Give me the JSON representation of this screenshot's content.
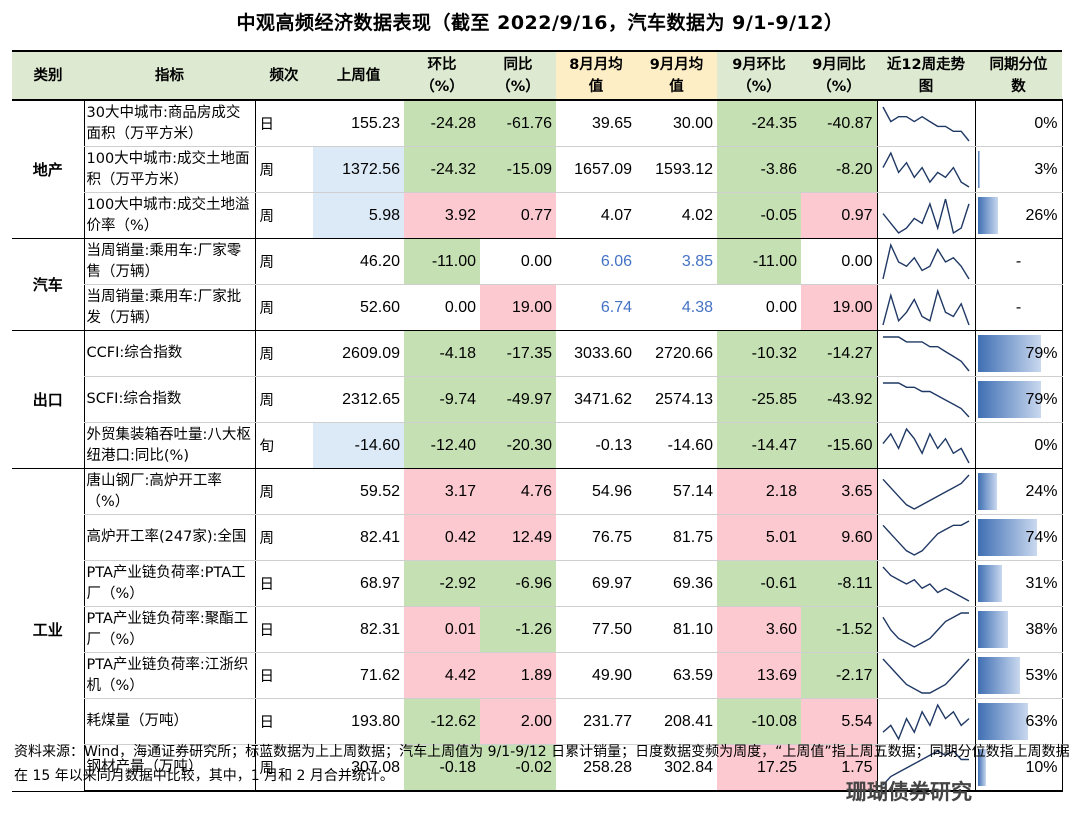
{
  "title": "中观高频经济数据表现（截至 2022/9/16，汽车数据为 9/1-9/12）",
  "headers": {
    "category": "类别",
    "indicator": "指标",
    "frequency": "频次",
    "last_week": "上周值",
    "wow": "环比\n（%）",
    "yoy": "同比\n（%）",
    "aug_avg": "8月月均\n值",
    "sep_avg": "9月月均\n值",
    "sep_mom": "9月环比\n（%）",
    "sep_yoy": "9月同比\n（%）",
    "trend": "近12周走势\n图",
    "percentile": "同期分位\n数"
  },
  "groups": [
    {
      "name": "地产",
      "rows": [
        {
          "indicator": "30大中城市:商品房成交面积（万平方米）",
          "freq": "日",
          "last": "155.23",
          "wow": "-24.28",
          "yoy": "-61.76",
          "aug": "39.65",
          "sep": "30.00",
          "smom": "-24.35",
          "syoy": "-40.87",
          "pct": "0%",
          "pct_value": 0,
          "spark": [
            8,
            5,
            6,
            6,
            5,
            6,
            5,
            4,
            4,
            3,
            3,
            1
          ],
          "c": [
            "",
            "green",
            "green",
            "",
            "",
            "green",
            "green"
          ]
        },
        {
          "indicator": "100大中城市:成交土地面积（万平方米）",
          "freq": "周",
          "last": "1372.56",
          "wow": "-24.32",
          "yoy": "-15.09",
          "aug": "1657.09",
          "sep": "1593.12",
          "smom": "-3.86",
          "syoy": "-8.20",
          "pct": "3%",
          "pct_value": 3,
          "spark": [
            5,
            8,
            4,
            6,
            3,
            5,
            2,
            4,
            3,
            5,
            2,
            1
          ],
          "c": [
            "blue",
            "green",
            "green",
            "",
            "",
            "green",
            "green"
          ]
        },
        {
          "indicator": "100大中城市:成交土地溢价率（%）",
          "freq": "周",
          "last": "5.98",
          "wow": "3.92",
          "yoy": "0.77",
          "aug": "4.07",
          "sep": "4.02",
          "smom": "-0.05",
          "syoy": "0.97",
          "pct": "26%",
          "pct_value": 26,
          "spark": [
            6,
            4,
            2,
            3,
            5,
            4,
            8,
            3,
            9,
            2,
            3,
            8
          ],
          "c": [
            "blue",
            "pink",
            "pink",
            "",
            "",
            "green",
            "pink"
          ]
        }
      ]
    },
    {
      "name": "汽车",
      "rows": [
        {
          "indicator": "当周销量:乘用车:厂家零售（万辆）",
          "freq": "周",
          "last": "46.20",
          "wow": "-11.00",
          "yoy": "0.00",
          "aug": "6.06",
          "sep": "3.85",
          "smom": "-11.00",
          "syoy": "0.00",
          "pct": "-",
          "pct_value": null,
          "spark": [
            1,
            9,
            5,
            4,
            6,
            3,
            4,
            8,
            5,
            6,
            4,
            1
          ],
          "c": [
            "",
            "green",
            "",
            "bluetext",
            "bluetext",
            "green",
            ""
          ]
        },
        {
          "indicator": "当周销量:乘用车:厂家批发（万辆）",
          "freq": "周",
          "last": "52.60",
          "wow": "0.00",
          "yoy": "19.00",
          "aug": "6.74",
          "sep": "4.38",
          "smom": "0.00",
          "syoy": "19.00",
          "pct": "-",
          "pct_value": null,
          "spark": [
            1,
            8,
            2,
            4,
            7,
            3,
            2,
            9,
            4,
            3,
            6,
            1
          ],
          "c": [
            "",
            "",
            "pink",
            "bluetext",
            "bluetext",
            "",
            "pink"
          ]
        }
      ]
    },
    {
      "name": "出口",
      "rows": [
        {
          "indicator": "CCFI:综合指数",
          "freq": "周",
          "last": "2609.09",
          "wow": "-4.18",
          "yoy": "-17.35",
          "aug": "3033.60",
          "sep": "2720.66",
          "smom": "-10.32",
          "syoy": "-14.27",
          "pct": "79%",
          "pct_value": 79,
          "spark": [
            9,
            9,
            9,
            8,
            8,
            8,
            7,
            7,
            6,
            5,
            4,
            2
          ],
          "c": [
            "",
            "green",
            "green",
            "",
            "",
            "green",
            "green"
          ]
        },
        {
          "indicator": "SCFI:综合指数",
          "freq": "周",
          "last": "2312.65",
          "wow": "-9.74",
          "yoy": "-49.97",
          "aug": "3471.62",
          "sep": "2574.13",
          "smom": "-25.85",
          "syoy": "-43.92",
          "pct": "79%",
          "pct_value": 79,
          "spark": [
            9,
            9,
            9,
            8,
            8,
            7,
            7,
            6,
            5,
            4,
            3,
            1
          ],
          "c": [
            "",
            "green",
            "green",
            "",
            "",
            "green",
            "green"
          ]
        },
        {
          "indicator": "外贸集装箱吞吐量:八大枢纽港口:同比(%)",
          "freq": "旬",
          "last": "-14.60",
          "wow": "-12.40",
          "yoy": "-20.30",
          "aug": "-0.13",
          "sep": "-14.60",
          "smom": "-14.47",
          "syoy": "-15.60",
          "pct": "0%",
          "pct_value": 0,
          "spark": [
            5,
            7,
            4,
            8,
            6,
            3,
            7,
            4,
            6,
            3,
            4,
            1
          ],
          "c": [
            "blue",
            "green",
            "green",
            "",
            "",
            "green",
            "green"
          ]
        }
      ]
    },
    {
      "name": "工业",
      "rows": [
        {
          "indicator": "唐山钢厂:高炉开工率（%）",
          "freq": "周",
          "last": "59.52",
          "wow": "3.17",
          "yoy": "4.76",
          "aug": "54.96",
          "sep": "57.14",
          "smom": "2.18",
          "syoy": "3.65",
          "pct": "24%",
          "pct_value": 24,
          "spark": [
            8,
            6,
            4,
            2,
            1,
            2,
            3,
            4,
            5,
            6,
            7,
            9
          ],
          "c": [
            "",
            "pink",
            "pink",
            "",
            "",
            "pink",
            "pink"
          ]
        },
        {
          "indicator": "高炉开工率(247家):全国",
          "freq": "周",
          "last": "82.41",
          "wow": "0.42",
          "yoy": "12.49",
          "aug": "76.75",
          "sep": "81.75",
          "smom": "5.01",
          "syoy": "9.60",
          "pct": "74%",
          "pct_value": 74,
          "spark": [
            8,
            6,
            4,
            2,
            1,
            2,
            4,
            6,
            7,
            8,
            8,
            9
          ],
          "c": [
            "",
            "pink",
            "pink",
            "",
            "",
            "pink",
            "pink"
          ]
        },
        {
          "indicator": "PTA产业链负荷率:PTA工厂（%）",
          "freq": "日",
          "last": "68.97",
          "wow": "-2.92",
          "yoy": "-6.96",
          "aug": "69.97",
          "sep": "69.36",
          "smom": "-0.61",
          "syoy": "-8.11",
          "pct": "31%",
          "pct_value": 31,
          "spark": [
            9,
            7,
            6,
            5,
            6,
            4,
            5,
            3,
            4,
            3,
            2,
            1
          ],
          "c": [
            "",
            "green",
            "green",
            "",
            "",
            "green",
            "green"
          ]
        },
        {
          "indicator": "PTA产业链负荷率:聚酯工厂（%）",
          "freq": "日",
          "last": "82.31",
          "wow": "0.01",
          "yoy": "-1.26",
          "aug": "77.50",
          "sep": "81.10",
          "smom": "3.60",
          "syoy": "-1.52",
          "pct": "38%",
          "pct_value": 38,
          "spark": [
            8,
            5,
            3,
            2,
            1,
            2,
            3,
            5,
            7,
            8,
            9,
            9
          ],
          "c": [
            "",
            "pink",
            "green",
            "",
            "",
            "pink",
            "green"
          ]
        },
        {
          "indicator": "PTA产业链负荷率:江浙织机（%）",
          "freq": "日",
          "last": "71.62",
          "wow": "4.42",
          "yoy": "1.89",
          "aug": "49.90",
          "sep": "63.59",
          "smom": "13.69",
          "syoy": "-2.17",
          "pct": "53%",
          "pct_value": 53,
          "spark": [
            9,
            7,
            5,
            3,
            2,
            1,
            1,
            2,
            3,
            5,
            7,
            9
          ],
          "c": [
            "",
            "pink",
            "pink",
            "",
            "",
            "pink",
            "green"
          ]
        },
        {
          "indicator": "耗煤量（万吨）",
          "freq": "日",
          "last": "193.80",
          "wow": "-12.62",
          "yoy": "2.00",
          "aug": "231.77",
          "sep": "208.41",
          "smom": "-10.08",
          "syoy": "5.54",
          "pct": "63%",
          "pct_value": 63,
          "spark": [
            4,
            5,
            3,
            6,
            4,
            7,
            5,
            8,
            6,
            7,
            5,
            6
          ],
          "c": [
            "",
            "green",
            "pink",
            "",
            "",
            "green",
            "pink"
          ]
        },
        {
          "indicator": "钢材产量（万吨）",
          "freq": "周",
          "last": "307.08",
          "wow": "-0.18",
          "yoy": "-0.02",
          "aug": "258.28",
          "sep": "302.84",
          "smom": "17.25",
          "syoy": "1.75",
          "pct": "10%",
          "pct_value": 10,
          "spark": [
            1,
            3,
            4,
            5,
            6,
            7,
            8,
            9,
            8,
            9,
            7,
            7
          ],
          "c": [
            "",
            "green",
            "green",
            "",
            "",
            "pink",
            "pink"
          ]
        }
      ]
    }
  ],
  "footnote": "资料来源：Wind，海通证券研究所；标蓝数据为上上周数据；汽车上周值为 9/1-9/12 日累计销量；日度数据变频为周度，“上周值”指上周五数据；同期分位数指上周数据在 15 年以来同月数据中比较，其中，1 月和 2 月合并统计。",
  "watermark": "珊瑚债券研究",
  "colors": {
    "green": "#c5e0b3",
    "pink": "#fbc9cf",
    "blue": "#dce9f6",
    "header": "#dde9d0",
    "header_yellow": "#fdeec5",
    "bar": "#3f6fb3"
  }
}
